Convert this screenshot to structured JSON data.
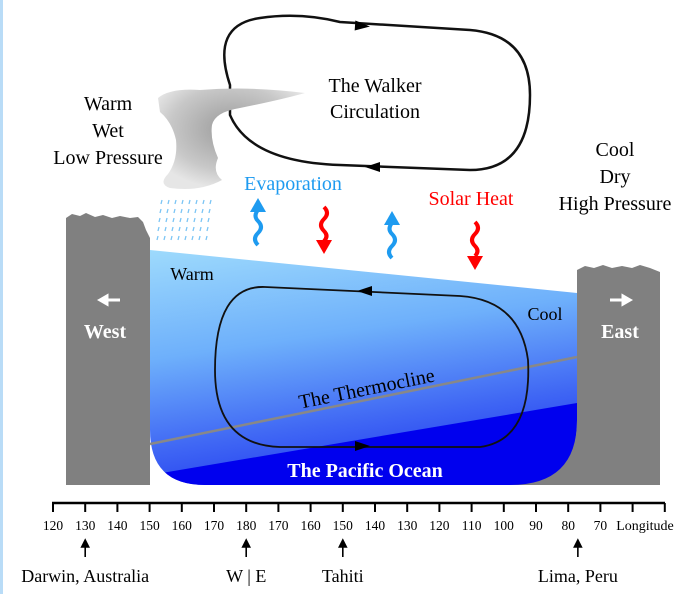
{
  "atmosphere": {
    "walker_title_line1": "The Walker",
    "walker_title_line2": "Circulation",
    "west_conditions": [
      "Warm",
      "Wet",
      "Low Pressure"
    ],
    "east_conditions": [
      "Cool",
      "Dry",
      "High Pressure"
    ],
    "evaporation_label": "Evaporation",
    "solar_heat_label": "Solar Heat"
  },
  "ocean": {
    "warm_label": "Warm",
    "cool_label": "Cool",
    "west_label": "West",
    "east_label": "East",
    "thermocline_label": "The Thermocline",
    "ocean_label": "The Pacific Ocean"
  },
  "axis": {
    "label": "Longitude",
    "ticks": [
      "120",
      "130",
      "140",
      "150",
      "160",
      "170",
      "180",
      "170",
      "160",
      "150",
      "140",
      "130",
      "120",
      "110",
      "100",
      "90",
      "80",
      "70"
    ],
    "locations": [
      {
        "name": "Darwin, Australia",
        "longitude": "130"
      },
      {
        "name": "W | E",
        "longitude": "180"
      },
      {
        "name": "Tahiti",
        "longitude": "150"
      },
      {
        "name": "Lima, Peru",
        "longitude": "77"
      }
    ]
  },
  "colors": {
    "evaporation": "#1e9bf0",
    "solar_heat": "#ff0000",
    "land": "#808080",
    "warm_water": "#9fdcfb",
    "deep_water": "#0000ee"
  }
}
